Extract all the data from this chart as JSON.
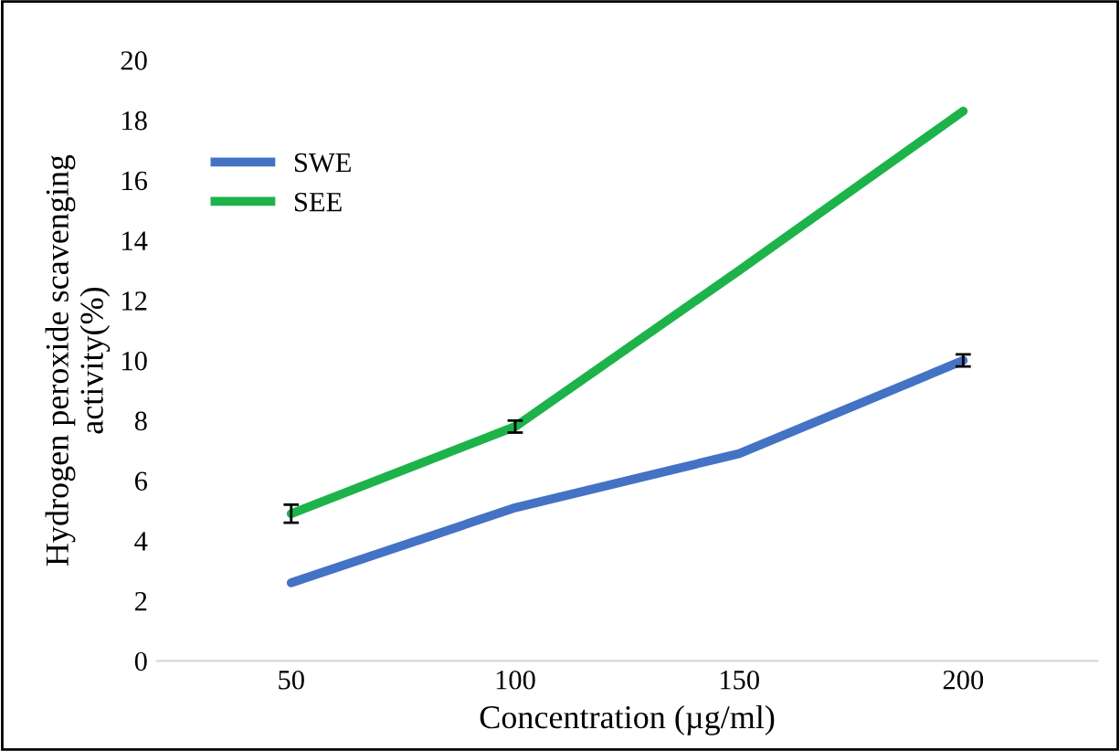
{
  "chart_data": {
    "type": "line",
    "xlabel": "Concentration (µg/ml)",
    "ylabel": "Hydrogen peroxide scavenging\nactivity(%)",
    "categories": [
      "50",
      "100",
      "150",
      "200"
    ],
    "series": [
      {
        "name": "SWE",
        "color": "#4472c4",
        "values": [
          2.6,
          5.1,
          6.9,
          10.0
        ],
        "errors": [
          null,
          null,
          null,
          0.2
        ]
      },
      {
        "name": "SEE",
        "color": "#1db34a",
        "values": [
          4.9,
          7.8,
          13.0,
          18.3
        ],
        "errors": [
          0.3,
          0.2,
          null,
          null
        ]
      }
    ],
    "ylim": [
      0,
      20
    ],
    "yticks": [
      0,
      2,
      4,
      6,
      8,
      10,
      12,
      14,
      16,
      18,
      20
    ],
    "grid": false,
    "legend": "top left",
    "marker": "none",
    "line_style": "solid"
  }
}
